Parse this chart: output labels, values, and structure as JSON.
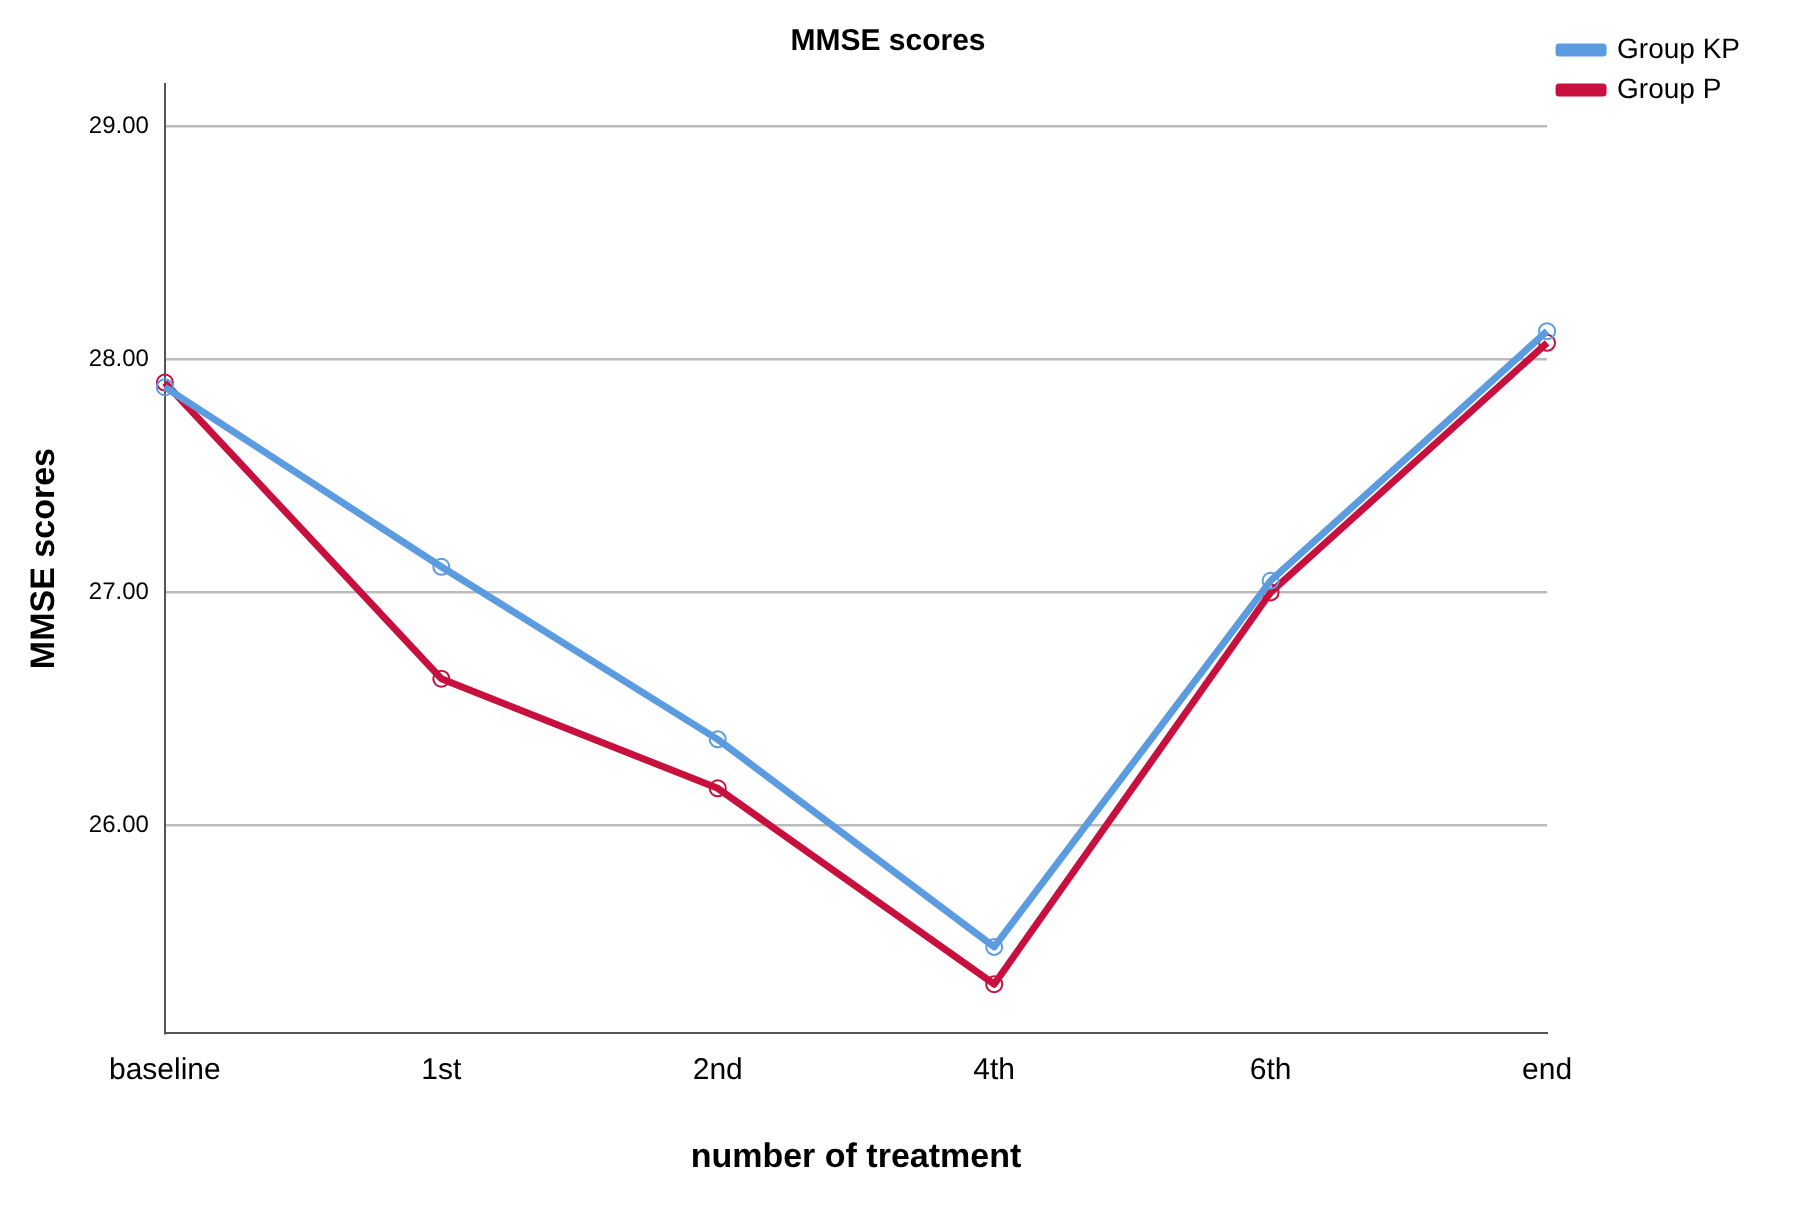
{
  "chart_data": {
    "type": "line",
    "title": "MMSE scores",
    "xlabel": "number of treatment",
    "ylabel": "MMSE scores",
    "categories": [
      "baseline",
      "1st",
      "2nd",
      "4th",
      "6th",
      "end"
    ],
    "series": [
      {
        "name": "Group KP",
        "color": "#5b9be0",
        "values": [
          27.88,
          27.11,
          26.37,
          25.48,
          27.05,
          28.12
        ]
      },
      {
        "name": "Group P",
        "color": "#c8103e",
        "values": [
          27.9,
          26.63,
          26.16,
          25.32,
          27.0,
          28.07
        ]
      }
    ],
    "ylim": [
      25.11,
      29.18
    ],
    "yticks": [
      {
        "value": 26,
        "label": "26.00"
      },
      {
        "value": 27,
        "label": "27.00"
      },
      {
        "value": 28,
        "label": "28.00"
      },
      {
        "value": 29,
        "label": "29.00"
      }
    ],
    "grid": "y",
    "legend": "top right",
    "marker": "circle",
    "line_style": "solid"
  }
}
